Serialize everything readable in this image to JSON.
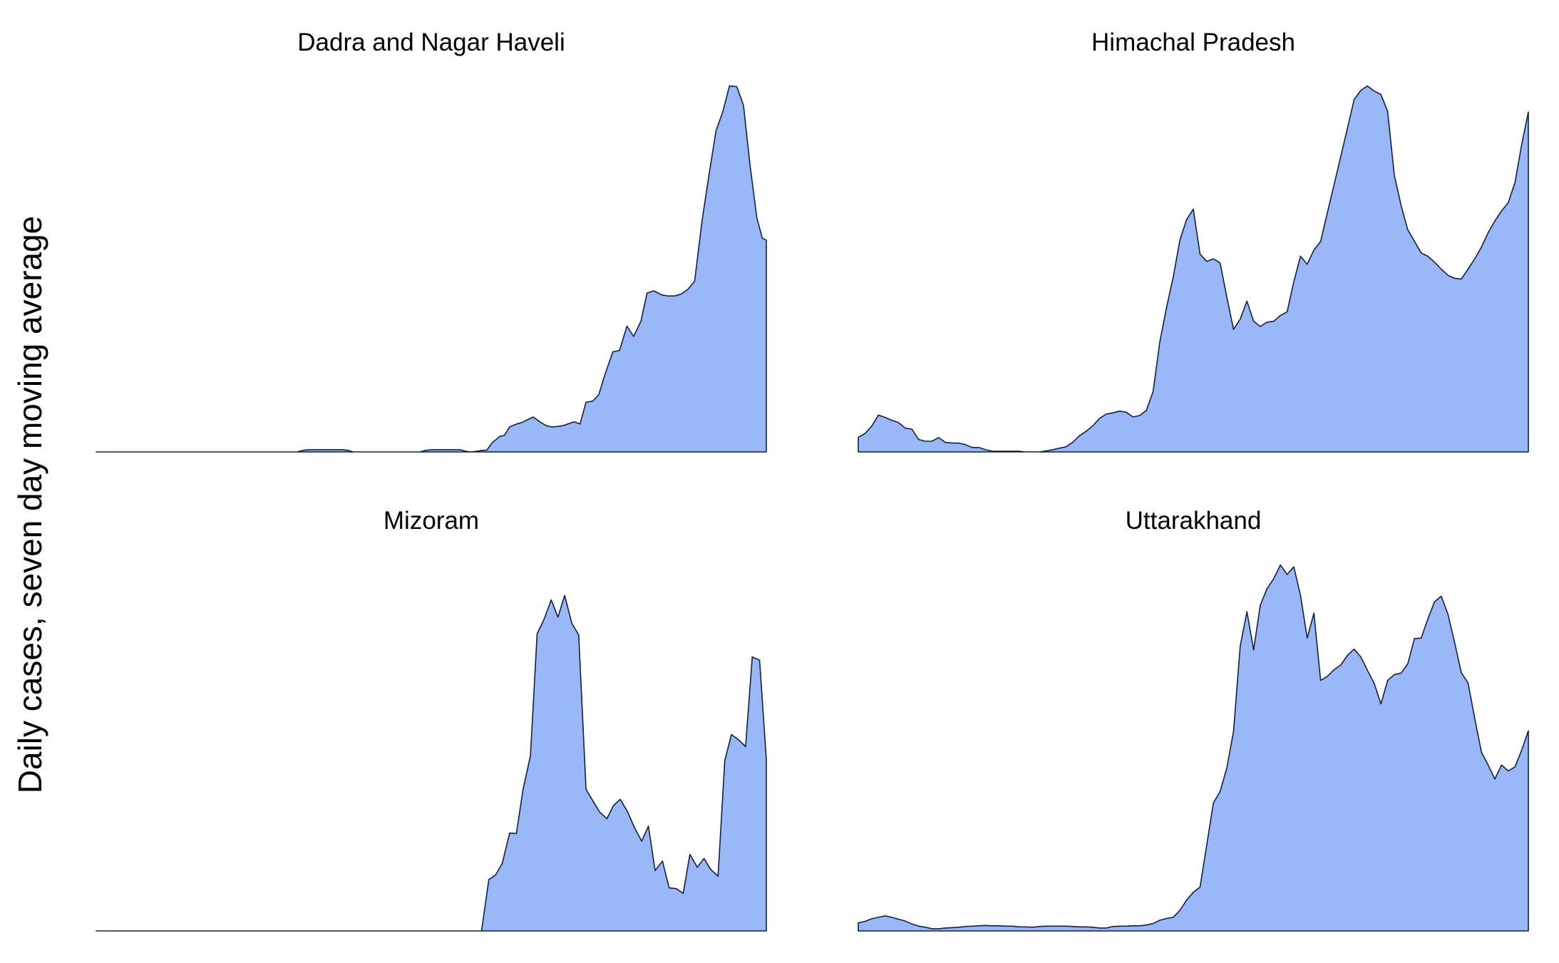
{
  "chart_data": {
    "type": "area",
    "ylabel": "Daily cases, seven day moving average",
    "grid": false,
    "legend": "none",
    "colors": {
      "fill": "#9ab8f8",
      "stroke": "#102040"
    },
    "panels": [
      {
        "title": "Dadra and Nagar Haveli",
        "xlim": [
          0,
          100
        ],
        "ylim": [
          0,
          100
        ],
        "series": [
          {
            "x": [
              0,
              30,
              30.8,
              31.6,
              36.8,
              37.6,
              38.4,
              48.3,
              49.1,
              49.9,
              54.3,
              55.1,
              55.9,
              56.8,
              57.5,
              58.3,
              59.1,
              60.2,
              60.9,
              61.7,
              62.6,
              63.5,
              64.1,
              65.2,
              66.2,
              67.1,
              67.9,
              68.7,
              69.8,
              71.3,
              72.2,
              73.1,
              74.1,
              75.0,
              76.0,
              77.1,
              78.1,
              79.2,
              80.2,
              81.3,
              82.2,
              83.2,
              84.4,
              85.3,
              86.3,
              87.3,
              88.3,
              89.3,
              90.4,
              91.4,
              92.5,
              93.5,
              94.5,
              95.6,
              96.6,
              97.6,
              98.6,
              99.4,
              100
            ],
            "y": [
              0,
              0,
              0.4,
              0.6,
              0.6,
              0.4,
              0,
              0,
              0.4,
              0.6,
              0.6,
              0.2,
              0,
              0.2,
              0.4,
              0.5,
              2.5,
              4.2,
              4.5,
              6.8,
              7.5,
              8.0,
              8.5,
              9.5,
              8.2,
              7.2,
              6.8,
              6.9,
              7.2,
              8.2,
              7.6,
              13.5,
              13.8,
              15.6,
              21.5,
              27.2,
              27.6,
              34.2,
              31.4,
              35.6,
              43.2,
              43.8,
              42.7,
              42.4,
              42.4,
              42.9,
              44.2,
              46.4,
              62.8,
              74.8,
              87.4,
              92.4,
              99.5,
              99.3,
              94.2,
              77.6,
              63.6,
              58.1,
              57.6
            ]
          }
        ]
      },
      {
        "title": "Himachal Pradesh",
        "xlim": [
          0,
          100
        ],
        "ylim": [
          0,
          100
        ],
        "series": [
          {
            "x": [
              0,
              1,
              2,
              3,
              4,
              5,
              6,
              7,
              8,
              9,
              10,
              11,
              12,
              13,
              14,
              15,
              16,
              17,
              18,
              19,
              20,
              21,
              22,
              23,
              24,
              25,
              26,
              27,
              28,
              29,
              30,
              31,
              32,
              33,
              34,
              35,
              36,
              37,
              38,
              39,
              40,
              41,
              42,
              43,
              44,
              45,
              46,
              47,
              48,
              49,
              50,
              51,
              52,
              53,
              54,
              55,
              56,
              57,
              58,
              59,
              60,
              61,
              62,
              63,
              64,
              65,
              66,
              67,
              68,
              69,
              70,
              71,
              72,
              73,
              74,
              75,
              76,
              77,
              78,
              79,
              80,
              81,
              82,
              83,
              84,
              85,
              86,
              87,
              88,
              89,
              90,
              91,
              92,
              93,
              94,
              95,
              96,
              97,
              98,
              99,
              100
            ],
            "y": [
              4.0,
              5.0,
              7.0,
              10.0,
              9.4,
              8.6,
              8.0,
              6.5,
              6.2,
              3.4,
              2.9,
              2.9,
              3.9,
              2.6,
              2.4,
              2.4,
              2.0,
              1.2,
              1.2,
              0.6,
              0.2,
              0.2,
              0.2,
              0.2,
              0.2,
              0.0,
              0.0,
              0.0,
              0.3,
              0.6,
              1.0,
              1.4,
              2.6,
              4.4,
              5.6,
              7.1,
              9.1,
              10.3,
              10.6,
              11.1,
              10.8,
              9.5,
              9.9,
              11.3,
              16.4,
              29.9,
              39.2,
              47.5,
              57.6,
              63.2,
              66.0,
              53.8,
              51.8,
              52.5,
              51.4,
              42.1,
              33.3,
              36.1,
              41.0,
              35.5,
              34.1,
              35.3,
              35.5,
              37.1,
              38.1,
              46.3,
              53.2,
              51.0,
              54.9,
              57.2,
              65.0,
              72.6,
              80.3,
              88.0,
              95.8,
              98.3,
              99.5,
              98.1,
              97.2,
              92.6,
              75.2,
              67.1,
              60.4,
              57.3,
              54.1,
              53.2,
              51.6,
              49.7,
              48.0,
              47.2,
              47.0,
              49.7,
              52.5,
              55.7,
              59.6,
              62.8,
              65.5,
              67.8,
              73.2,
              83.5,
              92.4
            ]
          }
        ]
      },
      {
        "title": "Mizoram",
        "xlim": [
          0,
          100
        ],
        "ylim": [
          0,
          100
        ],
        "series": [
          {
            "x": [
              0,
              57.5,
              58.6,
              59.6,
              60.6,
              61.7,
              62.7,
              63.7,
              64.8,
              65.8,
              66.8,
              67.9,
              68.9,
              69.9,
              71.0,
              72.0,
              73.1,
              74.1,
              75.1,
              76.2,
              77.2,
              78.2,
              79.3,
              80.3,
              81.4,
              82.4,
              83.4,
              84.5,
              85.5,
              86.6,
              87.6,
              88.6,
              89.7,
              90.7,
              91.7,
              92.8,
              93.8,
              94.8,
              95.9,
              96.9,
              97.9,
              99.0,
              100
            ],
            "y": [
              0,
              0,
              14.0,
              15.2,
              18.4,
              26.6,
              26.5,
              38.5,
              47.6,
              80.8,
              84.6,
              90.0,
              85.3,
              91.2,
              83.5,
              80.5,
              38.5,
              35.4,
              32.4,
              30.5,
              34.1,
              35.8,
              32.4,
              28.2,
              24.4,
              28.5,
              16.4,
              19.0,
              11.7,
              11.5,
              10.2,
              20.8,
              17.3,
              19.7,
              16.7,
              14.9,
              46.3,
              53.4,
              51.9,
              50.1,
              74.5,
              73.6,
              46.6
            ]
          }
        ]
      },
      {
        "title": "Uttarakhand",
        "xlim": [
          0,
          100
        ],
        "ylim": [
          0,
          100
        ],
        "series": [
          {
            "x": [
              0,
              1,
              2,
              3,
              4,
              5,
              6,
              7,
              8,
              9,
              10,
              11,
              12,
              13,
              14,
              15,
              16,
              17,
              18,
              19,
              20,
              21,
              22,
              23,
              24,
              25,
              26,
              27,
              28,
              29,
              30,
              31,
              32,
              33,
              34,
              35,
              36,
              37,
              38,
              39,
              40,
              41,
              42,
              43,
              44,
              45,
              46,
              47,
              48,
              49,
              50,
              51,
              52,
              53,
              54,
              55,
              56,
              57,
              58,
              59,
              60,
              61,
              62,
              63,
              64,
              65,
              66,
              67,
              68,
              69,
              70,
              71,
              72,
              73,
              74,
              75,
              76,
              77,
              78,
              79,
              80,
              81,
              82,
              83,
              84,
              85,
              86,
              87,
              88,
              89,
              90,
              91,
              92,
              93,
              94,
              95,
              96,
              97,
              98,
              99,
              100
            ],
            "y": [
              2.2,
              2.6,
              3.3,
              3.7,
              4.1,
              3.7,
              3.2,
              2.7,
              1.9,
              1.3,
              1.0,
              0.6,
              0.6,
              0.8,
              0.9,
              1.0,
              1.2,
              1.3,
              1.4,
              1.5,
              1.4,
              1.4,
              1.3,
              1.3,
              1.1,
              1.1,
              1.0,
              1.2,
              1.3,
              1.3,
              1.3,
              1.3,
              1.2,
              1.1,
              1.1,
              1.0,
              0.8,
              0.8,
              1.2,
              1.3,
              1.3,
              1.4,
              1.4,
              1.6,
              2.0,
              2.9,
              3.4,
              3.7,
              5.6,
              8.4,
              10.5,
              11.9,
              23.3,
              34.8,
              37.9,
              44.3,
              54.2,
              77.4,
              86.8,
              76.4,
              88.6,
              93.0,
              95.8,
              99.5,
              96.9,
              99.0,
              91.2,
              79.6,
              86.4,
              68.1,
              69.2,
              71.0,
              72.3,
              74.9,
              76.6,
              74.5,
              70.8,
              67.3,
              61.7,
              68.1,
              69.7,
              70.1,
              72.6,
              79.5,
              79.6,
              84.8,
              89.5,
              91.0,
              86.1,
              78.4,
              70.2,
              67.4,
              57.8,
              48.6,
              45.1,
              41.3,
              45.1,
              43.5,
              44.6,
              49.1,
              54.4
            ]
          }
        ]
      }
    ]
  }
}
